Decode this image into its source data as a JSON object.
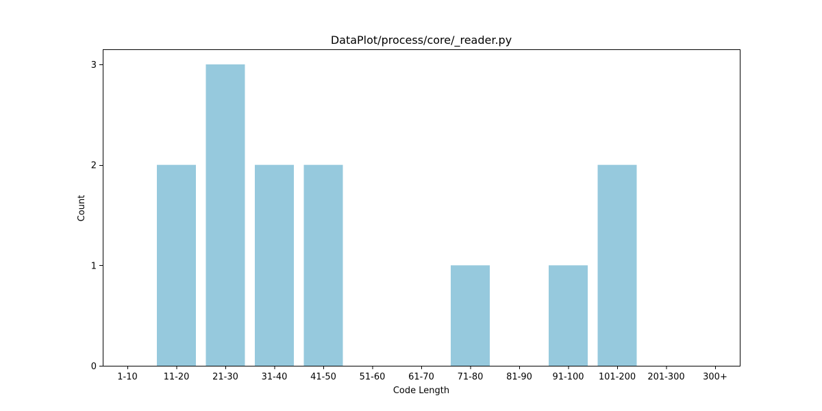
{
  "chart_data": {
    "type": "bar",
    "title": "DataPlot/process/core/_reader.py",
    "xlabel": "Code Length",
    "ylabel": "Count",
    "categories": [
      "1-10",
      "11-20",
      "21-30",
      "31-40",
      "41-50",
      "51-60",
      "61-70",
      "71-80",
      "81-90",
      "91-100",
      "101-200",
      "201-300",
      "300+"
    ],
    "values": [
      0,
      2,
      3,
      2,
      2,
      0,
      0,
      1,
      0,
      1,
      2,
      0,
      0
    ],
    "yticks": [
      "0",
      "1",
      "2",
      "3"
    ],
    "ylim": [
      0,
      3.15
    ],
    "grid": false,
    "bar_color": "#96c9dd"
  }
}
